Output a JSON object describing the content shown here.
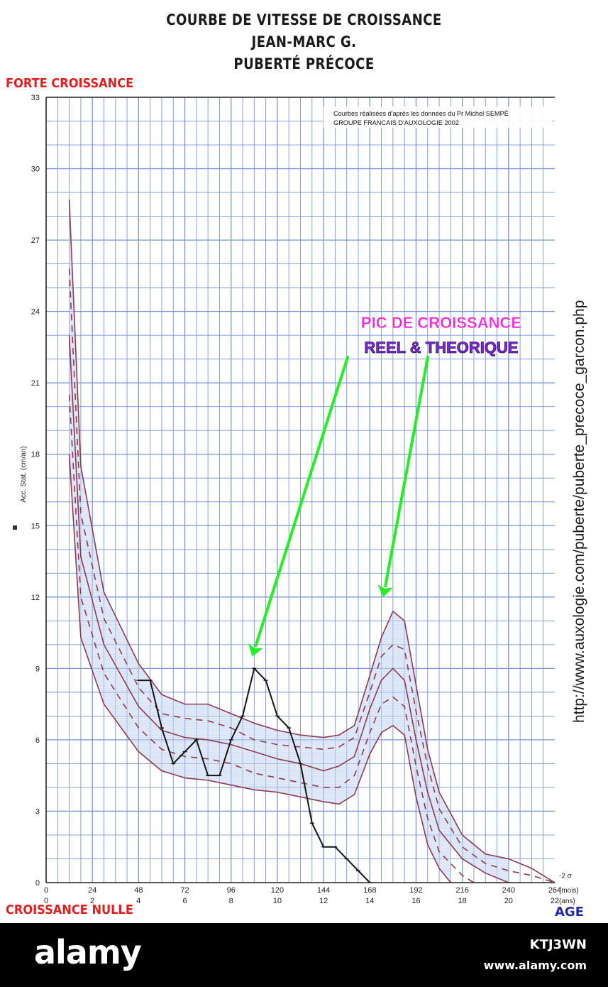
{
  "header": {
    "title_lines": [
      "COURBE DE VITESSE DE CROISSANCE",
      "JEAN-MARC G.",
      "PUBERTÉ PRÉCOCE"
    ],
    "top_left_label": "FORTE CROISSANCE",
    "bottom_left_label": "CROISSANCE NULLE",
    "age_label": "AGE"
  },
  "url_text": "http://www.auxologie.com/puberte/puberte_precoce_garcon.php",
  "footer": {
    "logo": "alamy",
    "image_id": "KTJ3WN",
    "site": "www.alamy.com"
  },
  "chart_data": {
    "type": "line",
    "source_note": [
      "Courbes réalisées d'après les données du Pr Michel SEMPÉ",
      "GROUPE FRANCAIS D'AUXOLOGIE 2002"
    ],
    "ylabel": "Acc. Stat. (cm/an)",
    "y_ticks": [
      0,
      3,
      6,
      9,
      12,
      15,
      18,
      21,
      24,
      27,
      30,
      33
    ],
    "ylim": [
      0,
      33
    ],
    "xlim": [
      0,
      264
    ],
    "x_ticks_months": [
      0,
      24,
      48,
      72,
      96,
      120,
      144,
      168,
      192,
      216,
      240,
      264
    ],
    "x_ticks_years": [
      "0",
      "2",
      "4",
      "6",
      "8",
      "10",
      "12",
      "14",
      "16",
      "18",
      "20",
      "22"
    ],
    "x_unit_months": "(mois)",
    "x_unit_years": "(ans)",
    "sigma_label": "-2 σ",
    "grid": true,
    "annotation": {
      "line1": "PIC DE CROISSANCE",
      "line2": "REEL & THEORIQUE",
      "line1_color": "#ff22dd",
      "line2_color": "#8a20e0",
      "arrow_color": "#22ee22",
      "targets": [
        {
          "x": 107,
          "y": 9.5
        },
        {
          "x": 175,
          "y": 12.0
        }
      ]
    },
    "reference_series": [
      {
        "style": "solid",
        "points": [
          [
            12,
            28.7
          ],
          [
            18,
            17.5
          ],
          [
            30,
            12.2
          ],
          [
            48,
            9.2
          ],
          [
            60,
            7.9
          ],
          [
            72,
            7.5
          ],
          [
            84,
            7.5
          ],
          [
            96,
            7.1
          ],
          [
            108,
            6.7
          ],
          [
            120,
            6.4
          ],
          [
            132,
            6.2
          ],
          [
            144,
            6.1
          ],
          [
            152,
            6.2
          ],
          [
            160,
            6.6
          ],
          [
            168,
            8.7
          ],
          [
            174,
            10.3
          ],
          [
            180,
            11.4
          ],
          [
            186,
            11.0
          ],
          [
            192,
            8.3
          ],
          [
            198,
            5.6
          ],
          [
            204,
            3.8
          ],
          [
            216,
            2.0
          ],
          [
            228,
            1.2
          ],
          [
            240,
            1.0
          ],
          [
            252,
            0.6
          ],
          [
            264,
            0.0
          ]
        ]
      },
      {
        "style": "dashed",
        "points": [
          [
            12,
            25.8
          ],
          [
            18,
            15.5
          ],
          [
            30,
            11.1
          ],
          [
            48,
            8.2
          ],
          [
            60,
            7.1
          ],
          [
            72,
            6.9
          ],
          [
            84,
            6.8
          ],
          [
            96,
            6.5
          ],
          [
            108,
            6.0
          ],
          [
            120,
            5.8
          ],
          [
            132,
            5.7
          ],
          [
            144,
            5.6
          ],
          [
            152,
            5.7
          ],
          [
            160,
            6.1
          ],
          [
            168,
            8.0
          ],
          [
            174,
            9.5
          ],
          [
            180,
            10.0
          ],
          [
            186,
            9.8
          ],
          [
            192,
            7.2
          ],
          [
            198,
            4.9
          ],
          [
            204,
            3.1
          ],
          [
            216,
            1.5
          ],
          [
            228,
            0.8
          ],
          [
            240,
            0.5
          ],
          [
            252,
            0.3
          ],
          [
            264,
            0.0
          ]
        ]
      },
      {
        "style": "solid",
        "points": [
          [
            12,
            23.0
          ],
          [
            18,
            13.7
          ],
          [
            30,
            10.0
          ],
          [
            48,
            7.4
          ],
          [
            60,
            6.4
          ],
          [
            72,
            6.1
          ],
          [
            84,
            6.0
          ],
          [
            96,
            5.8
          ],
          [
            108,
            5.5
          ],
          [
            120,
            5.2
          ],
          [
            132,
            5.0
          ],
          [
            144,
            4.7
          ],
          [
            152,
            4.9
          ],
          [
            160,
            5.3
          ],
          [
            168,
            7.3
          ],
          [
            174,
            8.5
          ],
          [
            180,
            9.0
          ],
          [
            186,
            8.5
          ],
          [
            192,
            6.0
          ],
          [
            198,
            3.8
          ],
          [
            204,
            2.2
          ],
          [
            216,
            1.0
          ],
          [
            228,
            0.4
          ],
          [
            240,
            0.0
          ]
        ]
      },
      {
        "style": "dashed",
        "points": [
          [
            12,
            20.5
          ],
          [
            18,
            12.0
          ],
          [
            30,
            8.8
          ],
          [
            48,
            6.5
          ],
          [
            60,
            5.6
          ],
          [
            72,
            5.3
          ],
          [
            84,
            5.2
          ],
          [
            96,
            5.0
          ],
          [
            108,
            4.6
          ],
          [
            120,
            4.4
          ],
          [
            132,
            4.2
          ],
          [
            144,
            4.0
          ],
          [
            152,
            4.0
          ],
          [
            160,
            4.5
          ],
          [
            168,
            6.3
          ],
          [
            174,
            7.5
          ],
          [
            180,
            7.8
          ],
          [
            186,
            7.4
          ],
          [
            192,
            4.9
          ],
          [
            198,
            2.7
          ],
          [
            204,
            1.3
          ],
          [
            216,
            0.3
          ],
          [
            222,
            0.0
          ]
        ]
      },
      {
        "style": "solid",
        "points": [
          [
            12,
            18.0
          ],
          [
            18,
            10.3
          ],
          [
            30,
            7.5
          ],
          [
            48,
            5.5
          ],
          [
            60,
            4.7
          ],
          [
            72,
            4.4
          ],
          [
            84,
            4.3
          ],
          [
            96,
            4.1
          ],
          [
            108,
            3.9
          ],
          [
            120,
            3.8
          ],
          [
            132,
            3.6
          ],
          [
            144,
            3.4
          ],
          [
            152,
            3.3
          ],
          [
            160,
            3.7
          ],
          [
            168,
            5.4
          ],
          [
            174,
            6.3
          ],
          [
            180,
            6.6
          ],
          [
            186,
            6.2
          ],
          [
            192,
            3.6
          ],
          [
            198,
            1.6
          ],
          [
            204,
            0.6
          ],
          [
            210,
            0.0
          ]
        ]
      }
    ],
    "patient_series": {
      "name": "",
      "points": [
        [
          48,
          8.5
        ],
        [
          54,
          8.5
        ],
        [
          60,
          6.5
        ],
        [
          66,
          5.0
        ],
        [
          72,
          5.5
        ],
        [
          78,
          6.0
        ],
        [
          84,
          4.5
        ],
        [
          90,
          4.5
        ],
        [
          96,
          6.0
        ],
        [
          102,
          7.0
        ],
        [
          108,
          9.0
        ],
        [
          114,
          8.5
        ],
        [
          120,
          7.0
        ],
        [
          126,
          6.5
        ],
        [
          132,
          5.0
        ],
        [
          138,
          2.5
        ],
        [
          144,
          1.5
        ],
        [
          150,
          1.5
        ],
        [
          156,
          1.0
        ],
        [
          162,
          0.5
        ],
        [
          168,
          0.0
        ]
      ]
    },
    "colors": {
      "grid": "#7a96d8",
      "reference": "#8e3a50",
      "band": "#c7d7f2",
      "patient": "#141414",
      "axis": "#222222"
    }
  }
}
